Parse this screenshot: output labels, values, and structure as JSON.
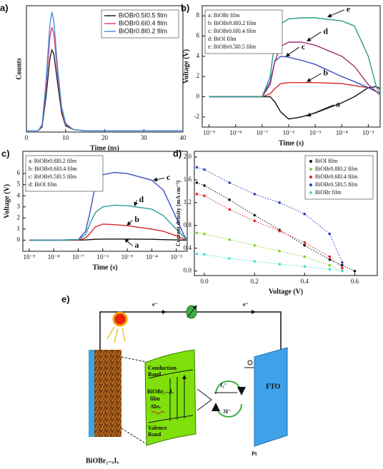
{
  "chart_data": [
    {
      "type": "line",
      "label": "a)",
      "xlabel": "Time (ns)",
      "ylabel": "Counts",
      "x": [
        0,
        3,
        4,
        5,
        6,
        6.5,
        7,
        8,
        9,
        10,
        12,
        15,
        20,
        40
      ],
      "xlim": [
        0,
        40
      ],
      "xticks": [
        0,
        10,
        20,
        30,
        40
      ],
      "ylim": [
        0,
        100
      ],
      "legend": "upper right",
      "series": [
        {
          "name": "BiOBr0.5I0.5 film",
          "color": "#222222",
          "values": [
            1,
            1,
            4,
            28,
            58,
            65,
            62,
            38,
            15,
            5,
            2,
            1,
            1,
            1
          ]
        },
        {
          "name": "BiOBr0.6I0.4 film",
          "color": "#e0457b",
          "values": [
            1,
            1,
            5,
            35,
            75,
            83,
            78,
            45,
            18,
            6,
            2,
            1,
            1,
            1
          ]
        },
        {
          "name": "BiOBr0.8I0.2 film",
          "color": "#4a8fe0",
          "values": [
            1,
            1,
            6,
            40,
            85,
            95,
            88,
            50,
            20,
            7,
            2,
            1,
            1,
            1
          ]
        }
      ]
    },
    {
      "type": "line",
      "label": "b)",
      "xlabel": "Time (s)",
      "ylabel": "Voltage (V)",
      "xscale": "log",
      "x": [
        1e-09,
        1e-08,
        1e-07,
        2e-07,
        3e-07,
        5e-07,
        1e-06,
        3e-06,
        1e-05,
        0.0001,
        0.0003,
        0.001,
        0.002,
        0.0028
      ],
      "xlim": [
        5.5e-10,
        0.0028
      ],
      "xticks": [
        {
          "value": 1e-09,
          "label": "10⁻⁹"
        },
        {
          "value": 1e-08,
          "label": "10⁻⁸"
        },
        {
          "value": 1e-07,
          "label": "10⁻⁷"
        },
        {
          "value": 1e-06,
          "label": "10⁻⁶"
        },
        {
          "value": 1e-05,
          "label": "10⁻⁵"
        },
        {
          "value": 0.0001,
          "label": "10⁻⁴"
        },
        {
          "value": 0.001,
          "label": "10⁻³"
        }
      ],
      "ylim": [
        -3,
        9
      ],
      "yticks": [
        -2,
        0,
        2,
        4,
        6,
        8
      ],
      "legend": "upper left",
      "series": [
        {
          "name": "a: BiOBr film",
          "color": "#111111",
          "values": [
            0,
            0,
            0,
            0,
            -0.5,
            -1.5,
            -2.2,
            -2.0,
            -1.6,
            -0.6,
            0,
            0.9,
            1.0,
            0.8
          ]
        },
        {
          "name": "b: BiOBr0.8I0.2 film",
          "color": "#d62728",
          "values": [
            0,
            0,
            0,
            0.3,
            0.8,
            1.3,
            1.4,
            1.4,
            1.4,
            1.3,
            1.1,
            0.9,
            0.5,
            0.2
          ]
        },
        {
          "name": "c: BiOBr0.6I0.4 film",
          "color": "#3a4fc7",
          "values": [
            0,
            0,
            0,
            1.5,
            3.5,
            4.0,
            3.9,
            3.6,
            3.2,
            2.0,
            1.5,
            0.9,
            0.5,
            0.2
          ]
        },
        {
          "name": "d: BiOI film",
          "color": "#a0306e",
          "values": [
            0,
            0,
            0,
            1.2,
            3.5,
            5.0,
            5.4,
            5.4,
            5.1,
            4.0,
            3.0,
            1.2,
            0.5,
            0.2
          ]
        },
        {
          "name": "e: BiOBr0.5I0.5 film",
          "color": "#2a9d8a",
          "values": [
            0,
            0,
            0,
            2,
            5.5,
            7.2,
            7.7,
            7.8,
            7.8,
            7.5,
            7.0,
            4,
            1,
            0.2
          ]
        }
      ],
      "annotations": [
        {
          "text": "a",
          "x": 6e-05,
          "y": -0.8,
          "target": [
            5e-06,
            -1.9
          ]
        },
        {
          "text": "b",
          "x": 2e-05,
          "y": 2.3,
          "target": [
            5e-06,
            1.5
          ]
        },
        {
          "text": "c",
          "x": 3e-06,
          "y": 4.9,
          "target": [
            8e-07,
            4.0
          ]
        },
        {
          "text": "d",
          "x": 2e-05,
          "y": 6.4,
          "target": [
            5e-06,
            5.5
          ]
        },
        {
          "text": "e",
          "x": 0.00015,
          "y": 8.6,
          "target": [
            3e-05,
            7.9
          ]
        }
      ]
    },
    {
      "type": "line",
      "label": "c)",
      "xlabel": "Time (s)",
      "ylabel": "Voltage (V)",
      "xscale": "log",
      "x": [
        1e-09,
        1e-08,
        1e-07,
        2e-07,
        3e-07,
        5e-07,
        1e-06,
        3e-06,
        1e-05,
        0.0001,
        0.0003,
        0.001,
        0.002,
        0.0028
      ],
      "xlim": [
        5.5e-10,
        0.0028
      ],
      "xticks": [
        {
          "value": 1e-09,
          "label": "10⁻⁹"
        },
        {
          "value": 1e-08,
          "label": "10⁻⁸"
        },
        {
          "value": 1e-07,
          "label": "10⁻⁷"
        },
        {
          "value": 1e-06,
          "label": "10⁻⁶"
        },
        {
          "value": 1e-05,
          "label": "10⁻⁵"
        },
        {
          "value": 0.0001,
          "label": "10⁻⁴"
        },
        {
          "value": 0.001,
          "label": "10⁻³"
        }
      ],
      "ylim": [
        -1,
        8
      ],
      "yticks": [
        0,
        1,
        2,
        3,
        4,
        5,
        6
      ],
      "legend": "upper left",
      "series": [
        {
          "name": "a: BiOBr0.8I0.2 film",
          "color": "#111111",
          "values": [
            0,
            0,
            0,
            0.02,
            0.05,
            0.08,
            0.1,
            0.1,
            0.1,
            0.08,
            0.05,
            0.02,
            0,
            0
          ]
        },
        {
          "name": "b: BiOBr0.6I0.4 film",
          "color": "#d62728",
          "values": [
            0,
            0,
            0,
            0.2,
            0.6,
            1.2,
            1.45,
            1.4,
            1.3,
            1.0,
            0.8,
            0.4,
            0.1,
            0
          ]
        },
        {
          "name": "c: BiOBr0.5I0.5 film",
          "color": "#3a4fc7",
          "values": [
            0,
            0,
            0.05,
            0.8,
            2.5,
            5.0,
            5.9,
            6.1,
            6.0,
            5.4,
            4.5,
            2.0,
            0.5,
            0
          ]
        },
        {
          "name": "d: BiOI film",
          "color": "#2a9d9a",
          "values": [
            0,
            0,
            0.05,
            0.5,
            1.5,
            2.5,
            3.0,
            3.15,
            3.1,
            2.8,
            2.2,
            1.0,
            0.3,
            0
          ]
        }
      ],
      "annotations": [
        {
          "text": "a",
          "x": 2e-05,
          "y": -0.5,
          "target": [
            8e-06,
            0.1
          ]
        },
        {
          "text": "b",
          "x": 2e-05,
          "y": 1.8,
          "target": [
            1e-05,
            1.35
          ]
        },
        {
          "text": "c",
          "x": 0.0004,
          "y": 5.6,
          "target": [
            0.00012,
            5.4
          ]
        },
        {
          "text": "d",
          "x": 3e-05,
          "y": 3.6,
          "target": [
            2e-05,
            3.1
          ]
        }
      ]
    },
    {
      "type": "line",
      "label": "d)",
      "xlabel": "Voltage (V)",
      "ylabel": "Current density (mA cm⁻²)",
      "markers": "dots",
      "x": [
        -0.03,
        0,
        0.1,
        0.2,
        0.3,
        0.4,
        0.5,
        0.55,
        0.6
      ],
      "xlim": [
        -0.04,
        0.69
      ],
      "xticks": [
        {
          "value": 0,
          "label": "0.0"
        },
        0.2,
        0.4,
        0.6
      ],
      "ylim": [
        -0.08,
        2.1
      ],
      "yticks": [
        {
          "value": 0,
          "label": "0.0"
        },
        0.4,
        0.8,
        1.2,
        1.6,
        {
          "value": 2,
          "label": "2.0"
        }
      ],
      "legend": "upper right",
      "series": [
        {
          "name": "BiOI film",
          "color": "#111111",
          "values": [
            1.55,
            1.5,
            1.25,
            0.98,
            0.72,
            0.45,
            0.2,
            0.1,
            0.0
          ]
        },
        {
          "name": "BiOBr0.8I0.2 film",
          "color": "#7ed321",
          "values": [
            0.67,
            0.65,
            0.55,
            0.45,
            0.35,
            0.25,
            0.1,
            0.0,
            null
          ]
        },
        {
          "name": "BiOBr0.6I0.4 film",
          "color": "#e02020",
          "values": [
            1.35,
            1.32,
            1.08,
            0.88,
            0.7,
            0.5,
            0.25,
            0.05,
            null
          ]
        },
        {
          "name": "BiOBr0.5I0.5 film",
          "color": "#2b3fbf",
          "values": [
            1.82,
            1.78,
            1.55,
            1.35,
            1.2,
            1.0,
            0.65,
            0.15,
            null
          ]
        },
        {
          "name": "BiOBr film",
          "color": "#40e0d0",
          "values": [
            0.3,
            0.29,
            0.22,
            0.17,
            0.12,
            0.08,
            0.03,
            0.0,
            null
          ]
        }
      ]
    }
  ],
  "diagram": {
    "label": "e)",
    "electron_left": "e⁻",
    "electron_right": "e⁻",
    "conduction": [
      "Conduction",
      "Band"
    ],
    "film": [
      "BiOBr₁₋ₓIₓ",
      "film"
    ],
    "abs": "Abs.",
    "valence": [
      "Valence",
      "Band"
    ],
    "triiodide": "I₃⁻",
    "iodide": "3I⁻",
    "fto": "FTO",
    "pt": "Pt",
    "electrode": "BiOBr₁₋ₓIₓ"
  }
}
